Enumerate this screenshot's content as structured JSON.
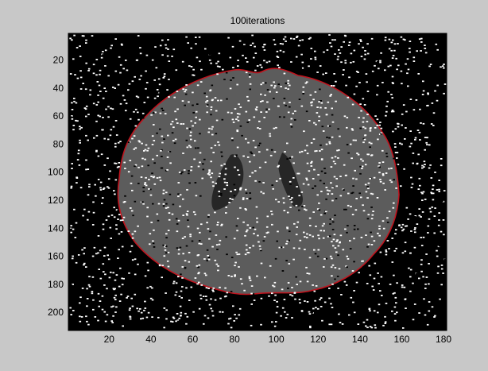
{
  "chart_data": {
    "type": "image",
    "title": "100iterations",
    "xlim": [
      0.5,
      181.5
    ],
    "xticks": [
      20,
      40,
      60,
      80,
      100,
      120,
      140,
      160,
      180
    ],
    "ylim": [
      0.5,
      212.5
    ],
    "yticks": [
      20,
      40,
      60,
      80,
      100,
      120,
      140,
      160,
      180,
      200
    ],
    "ydir": "reverse",
    "contour_color": "#c0141e"
  }
}
